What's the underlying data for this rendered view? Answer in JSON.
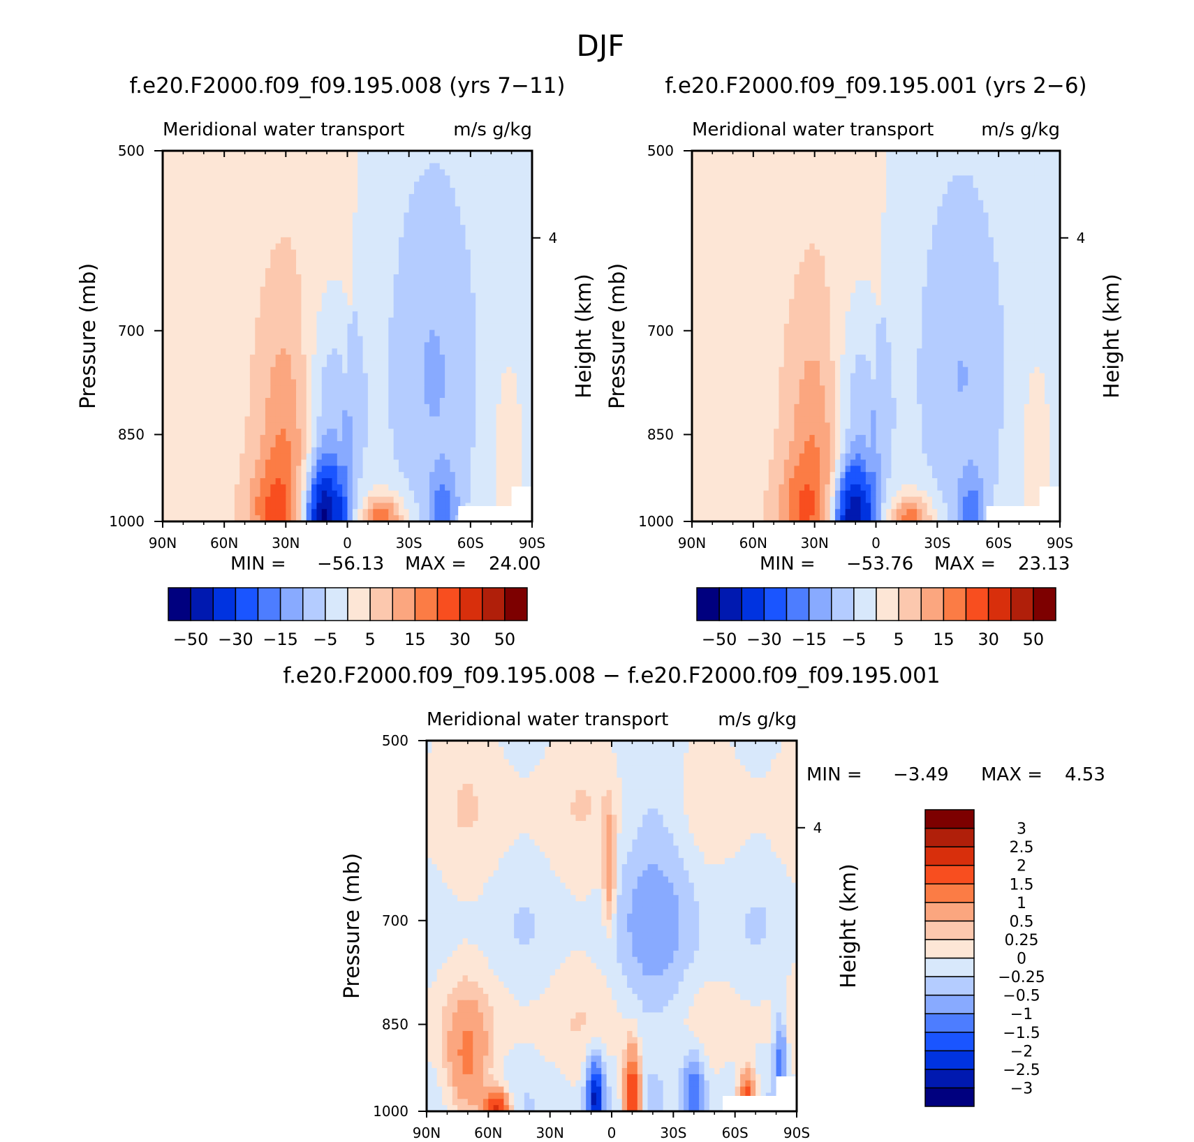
{
  "figure": {
    "title": "DJF"
  },
  "chart_data": [
    {
      "type": "heatmap",
      "title": "f.e20.F2000.f09_f09.195.008 (yrs 7−11)",
      "subtitle": "Meridional water transport",
      "units": "m/s g/kg",
      "ylabel": "Pressure (mb)",
      "ylabel_right": "Height (km)",
      "x_ticks": [
        "90N",
        "60N",
        "30N",
        "0",
        "30S",
        "60S",
        "90S"
      ],
      "y_ticks": [
        "500",
        "700",
        "850",
        "1000"
      ],
      "right_ticks": [
        "4"
      ],
      "x_range": [
        90,
        -90
      ],
      "y_range": [
        500,
        1000
      ],
      "y_scale": "log",
      "min_label": "MIN =",
      "min_value": "−56.13",
      "max_label": "MAX =",
      "max_value": "24.00",
      "levels": [
        -50,
        -40,
        -30,
        -20,
        -15,
        -10,
        -5,
        0,
        5,
        10,
        15,
        20,
        30,
        40,
        50
      ],
      "colorbar_labels": [
        "−50",
        "−30",
        "−15",
        "−5",
        "5",
        "15",
        "30",
        "50"
      ],
      "orientation": "horizontal"
    },
    {
      "type": "heatmap",
      "title": "f.e20.F2000.f09_f09.195.001 (yrs 2−6)",
      "subtitle": "Meridional water transport",
      "units": "m/s g/kg",
      "ylabel": "Pressure (mb)",
      "ylabel_right": "Height (km)",
      "x_ticks": [
        "90N",
        "60N",
        "30N",
        "0",
        "30S",
        "60S",
        "90S"
      ],
      "y_ticks": [
        "500",
        "700",
        "850",
        "1000"
      ],
      "right_ticks": [
        "4"
      ],
      "x_range": [
        90,
        -90
      ],
      "y_range": [
        500,
        1000
      ],
      "y_scale": "log",
      "min_label": "MIN =",
      "min_value": "−53.76",
      "max_label": "MAX =",
      "max_value": "23.13",
      "levels": [
        -50,
        -40,
        -30,
        -20,
        -15,
        -10,
        -5,
        0,
        5,
        10,
        15,
        20,
        30,
        40,
        50
      ],
      "colorbar_labels": [
        "−50",
        "−30",
        "−15",
        "−5",
        "5",
        "15",
        "30",
        "50"
      ],
      "orientation": "horizontal"
    },
    {
      "type": "heatmap",
      "title": "f.e20.F2000.f09_f09.195.008 − f.e20.F2000.f09_f09.195.001",
      "subtitle": "Meridional water transport",
      "units": "m/s g/kg",
      "ylabel": "Pressure (mb)",
      "ylabel_right": "Height (km)",
      "x_ticks": [
        "90N",
        "60N",
        "30N",
        "0",
        "30S",
        "60S",
        "90S"
      ],
      "y_ticks": [
        "500",
        "700",
        "850",
        "1000"
      ],
      "right_ticks": [
        "4"
      ],
      "x_range": [
        90,
        -90
      ],
      "y_range": [
        500,
        1000
      ],
      "y_scale": "log",
      "min_label": "MIN =",
      "min_value": "−3.49",
      "max_label": "MAX =",
      "max_value": "4.53",
      "levels": [
        -3,
        -2.5,
        -2,
        -1.5,
        -1,
        -0.5,
        -0.25,
        0,
        0.25,
        0.5,
        1,
        1.5,
        2,
        2.5,
        3
      ],
      "colorbar_labels": [
        "3",
        "2.5",
        "2",
        "1.5",
        "1",
        "0.5",
        "0.25",
        "0",
        "−0.25",
        "−0.5",
        "−1",
        "−1.5",
        "−2",
        "−2.5",
        "−3"
      ],
      "orientation": "vertical"
    }
  ],
  "colors": {
    "palette": [
      "#00007f",
      "#0019b0",
      "#0033e0",
      "#1a55ff",
      "#4d7dff",
      "#88aaff",
      "#b4ccff",
      "#d8e8fb",
      "#fde6d6",
      "#fcc8ae",
      "#fba67f",
      "#fb7c45",
      "#f84e1f",
      "#d82f0c",
      "#b01f0a",
      "#7d0000"
    ]
  }
}
